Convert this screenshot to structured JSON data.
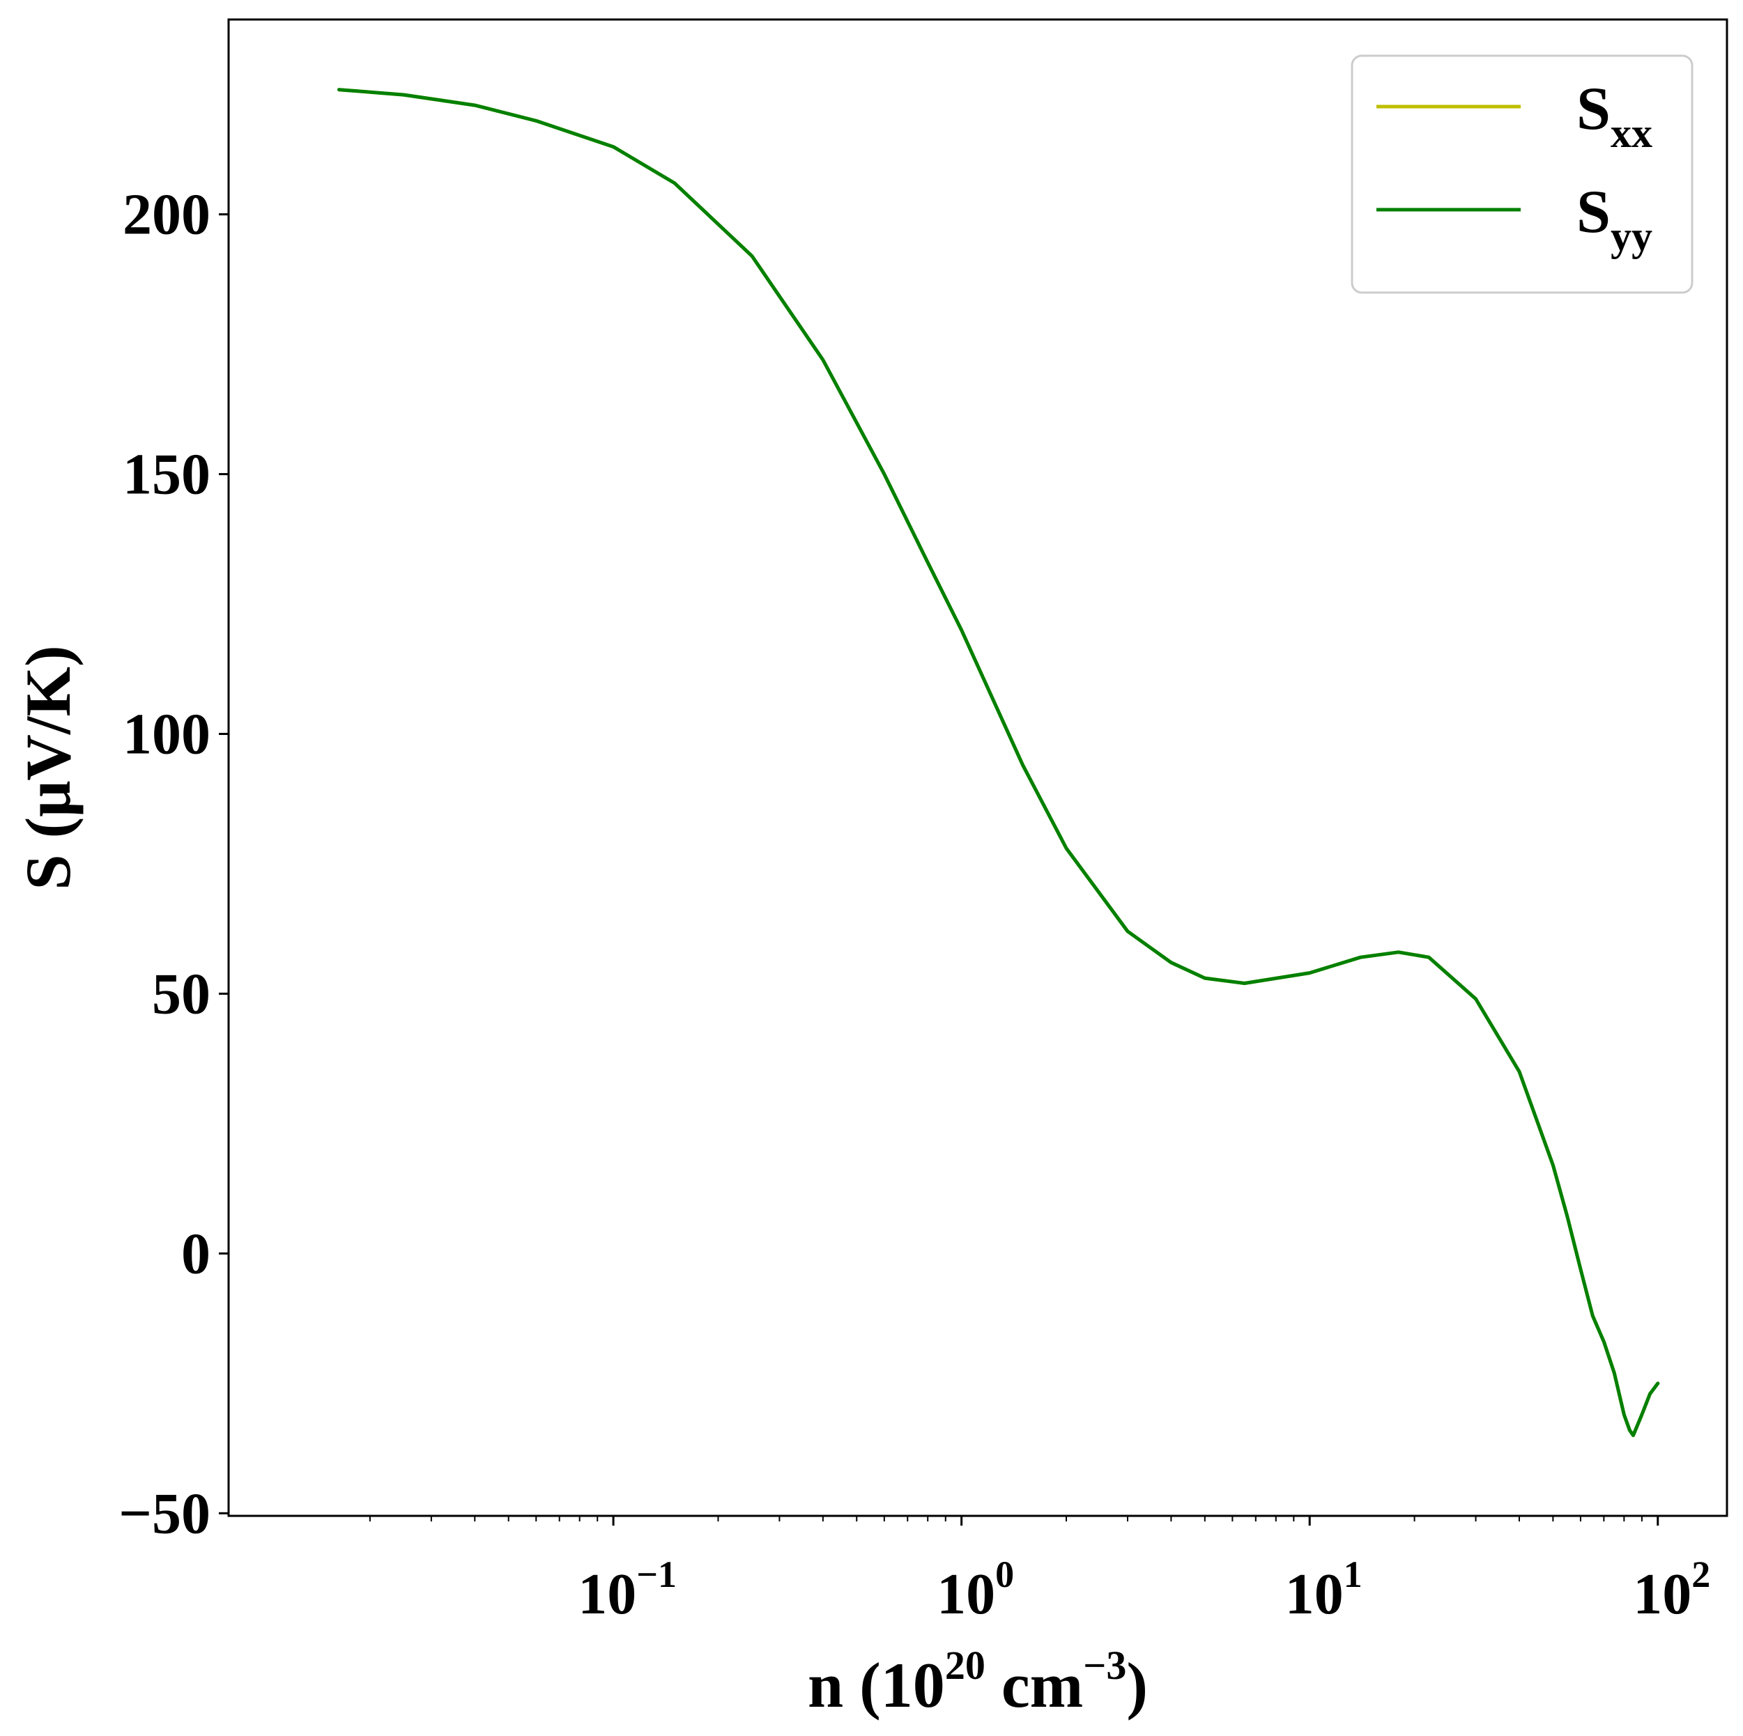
{
  "chart_data": {
    "type": "line",
    "xlabel": {
      "prefix": "n (10",
      "exp1": "20",
      "mid": " cm",
      "exp2": "−3",
      "suffix": ")"
    },
    "ylabel": "S (μV/K)",
    "xscale": "log",
    "xlim": [
      0.00785,
      158
    ],
    "ylim": [
      -50.5,
      237.5
    ],
    "grid": false,
    "legend_position": "top-right",
    "y_ticks": [
      {
        "value": -50,
        "label": "−50"
      },
      {
        "value": 0,
        "label": "0"
      },
      {
        "value": 50,
        "label": "50"
      },
      {
        "value": 100,
        "label": "100"
      },
      {
        "value": 150,
        "label": "150"
      },
      {
        "value": 200,
        "label": "200"
      }
    ],
    "x_ticks": [
      {
        "value": 0.1,
        "base": "10",
        "exp": "−1"
      },
      {
        "value": 1,
        "base": "10",
        "exp": "0"
      },
      {
        "value": 10,
        "base": "10",
        "exp": "1"
      },
      {
        "value": 100,
        "base": "10",
        "exp": "2"
      }
    ],
    "series": [
      {
        "name": "S",
        "sub": "xx",
        "color": "#bfbf00",
        "x": [
          0.0163,
          0.025,
          0.04,
          0.06,
          0.1,
          0.15,
          0.25,
          0.4,
          0.6,
          0.8,
          1.0,
          1.5,
          2.0,
          3.0,
          4.0,
          5.0,
          6.5,
          10,
          14,
          18,
          22,
          30,
          40,
          50,
          55,
          60,
          65,
          70,
          75,
          80,
          83,
          85,
          90,
          95,
          100
        ],
        "y": [
          224,
          223,
          221,
          218,
          213,
          206,
          192,
          172,
          150,
          133,
          120,
          94,
          78,
          62,
          56,
          53,
          52,
          54,
          57,
          58,
          57,
          49,
          35,
          17,
          7,
          -3,
          -12,
          -17,
          -23,
          -31,
          -34,
          -35,
          -31,
          -27,
          -25
        ]
      },
      {
        "name": "S",
        "sub": "yy",
        "color": "#008000",
        "x": [
          0.0163,
          0.025,
          0.04,
          0.06,
          0.1,
          0.15,
          0.25,
          0.4,
          0.6,
          0.8,
          1.0,
          1.5,
          2.0,
          3.0,
          4.0,
          5.0,
          6.5,
          10,
          14,
          18,
          22,
          30,
          40,
          50,
          55,
          60,
          65,
          70,
          75,
          80,
          83,
          85,
          90,
          95,
          100
        ],
        "y": [
          224,
          223,
          221,
          218,
          213,
          206,
          192,
          172,
          150,
          133,
          120,
          94,
          78,
          62,
          56,
          53,
          52,
          54,
          57,
          58,
          57,
          49,
          35,
          17,
          7,
          -3,
          -12,
          -17,
          -23,
          -31,
          -34,
          -35,
          -31,
          -27,
          -25
        ]
      }
    ]
  }
}
